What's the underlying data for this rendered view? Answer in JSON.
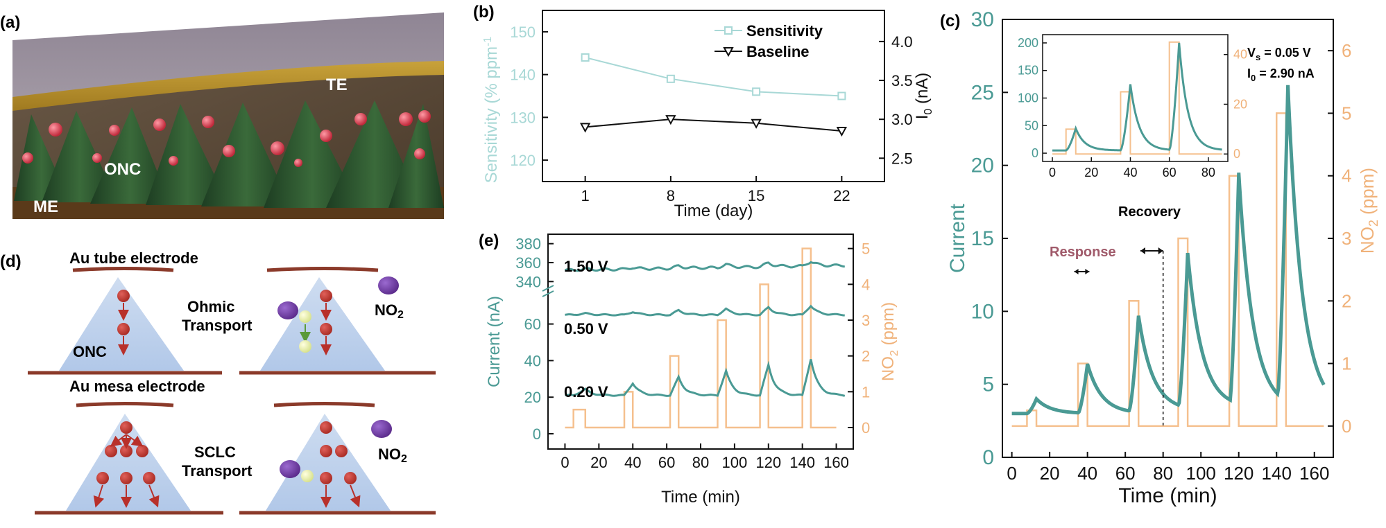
{
  "colors": {
    "teal": "#4a9a94",
    "orange": "#f5c08e",
    "lightteal": "#a8d8d6",
    "brown": "#8b3a2a",
    "red": "#c0392b",
    "purple": "#7b3fa0"
  },
  "panel_a": {
    "label": "(a)",
    "te": "TE",
    "onc": "ONC",
    "me": "ME"
  },
  "panel_d": {
    "label": "(d)",
    "au_tube": "Au tube electrode",
    "ohmic_line1": "Ohmic",
    "ohmic_line2": "Transport",
    "onc": "ONC",
    "au_mesa": "Au mesa electrode",
    "sclc_line1": "SCLC",
    "sclc_line2": "Transport",
    "no2_label": "NO",
    "no2_sub": "2"
  },
  "chart_data": [
    {
      "id": "b",
      "label": "(b)",
      "type": "line",
      "xlabel": "Time (day)",
      "ylabel_left": "Sensitivity (% ppm",
      "ylabel_left_sup": "-1",
      "ylabel_right": "I",
      "ylabel_right_sub": "0",
      "ylabel_right_unit": " (nA)",
      "x": [
        1,
        8,
        15,
        22
      ],
      "xticks": [
        "1",
        "8",
        "15",
        "22"
      ],
      "ylim_left": [
        115,
        155
      ],
      "yticks_left": [
        "120",
        "130",
        "140",
        "150"
      ],
      "ylim_right": [
        2.2,
        4.4
      ],
      "yticks_right": [
        "2.5",
        "3.0",
        "3.5",
        "4.0"
      ],
      "series": [
        {
          "name": "Sensitivity",
          "axis": "left",
          "values": [
            144,
            139,
            136,
            135
          ]
        },
        {
          "name": "Baseline",
          "axis": "right",
          "values": [
            2.9,
            3.0,
            2.95,
            2.85
          ]
        }
      ]
    },
    {
      "id": "e",
      "label": "(e)",
      "type": "line",
      "xlabel": "Time (min)",
      "ylabel_left": "Current (nA)",
      "ylabel_right": "NO",
      "ylabel_right_sub": "2",
      "ylabel_right_unit": " (ppm)",
      "xlim": [
        -10,
        170
      ],
      "xticks": [
        "0",
        "20",
        "40",
        "60",
        "80",
        "100",
        "120",
        "140",
        "160"
      ],
      "yticks_left_top": [
        "340",
        "360",
        "380"
      ],
      "yticks_left_bottom": [
        "0",
        "20",
        "40",
        "60"
      ],
      "yticks_right": [
        "0",
        "1",
        "2",
        "3",
        "4",
        "5"
      ],
      "ylim_right": [
        -0.6,
        5.4
      ],
      "series": [
        {
          "name": "1.50 V",
          "baseline": 352,
          "spike": 5
        },
        {
          "name": "0.50 V",
          "baseline": 65,
          "spike": 5
        },
        {
          "name": "0.20 V",
          "baseline": 21,
          "spike": 20
        }
      ],
      "no2_pulses": [
        {
          "start": 5,
          "end": 12,
          "ppm": 0.5
        },
        {
          "start": 35,
          "end": 40,
          "ppm": 1.0
        },
        {
          "start": 62,
          "end": 67,
          "ppm": 2.0
        },
        {
          "start": 90,
          "end": 95,
          "ppm": 3.0
        },
        {
          "start": 115,
          "end": 120,
          "ppm": 4.0
        },
        {
          "start": 140,
          "end": 145,
          "ppm": 5.0
        }
      ]
    },
    {
      "id": "c",
      "label": "(c)",
      "type": "line",
      "xlabel": "Time (min)",
      "ylabel_left": "Current",
      "ylabel_right": "NO",
      "ylabel_right_sub": "2",
      "ylabel_right_unit": " (ppm)",
      "xlim": [
        -5,
        170
      ],
      "xticks": [
        "0",
        "20",
        "40",
        "60",
        "80",
        "100",
        "120",
        "140",
        "160"
      ],
      "ylim_left": [
        0,
        30
      ],
      "yticks_left": [
        "0",
        "5",
        "10",
        "15",
        "20",
        "25",
        "30"
      ],
      "ylim_right": [
        -0.5,
        6.5
      ],
      "yticks_right": [
        "0",
        "1",
        "2",
        "3",
        "4",
        "5",
        "6"
      ],
      "annotations": {
        "response": "Response",
        "recovery": "Recovery",
        "vs": "V",
        "vs_sub": "s",
        "vs_val": " = 0.05 V",
        "i0": "I",
        "i0_sub": "0",
        "i0_val": " = 2.90 nA"
      },
      "no2_pulses": [
        {
          "start": 8,
          "end": 13,
          "ppm": 0.25
        },
        {
          "start": 35,
          "end": 40,
          "ppm": 1.0
        },
        {
          "start": 62,
          "end": 67,
          "ppm": 2.0
        },
        {
          "start": 88,
          "end": 93,
          "ppm": 3.0
        },
        {
          "start": 115,
          "end": 120,
          "ppm": 4.0
        },
        {
          "start": 140,
          "end": 145,
          "ppm": 5.0
        }
      ],
      "current_peaks": [
        {
          "t": 13,
          "base": 3.0,
          "peak": 4.0
        },
        {
          "t": 40,
          "base": 3.0,
          "peak": 6.4
        },
        {
          "t": 67,
          "base": 3.2,
          "peak": 9.7
        },
        {
          "t": 93,
          "base": 3.4,
          "peak": 14.0
        },
        {
          "t": 120,
          "base": 3.3,
          "peak": 19.5
        },
        {
          "t": 146,
          "base": 3.2,
          "peak": 25.5
        }
      ],
      "inset": {
        "xlim": [
          -5,
          90
        ],
        "xticks": [
          "0",
          "20",
          "40",
          "60",
          "80"
        ],
        "ylim_left": [
          -15,
          215
        ],
        "yticks_left": [
          "0",
          "50",
          "100",
          "150",
          "200"
        ],
        "ylim_right": [
          -3,
          48
        ],
        "yticks_right": [
          "0",
          "20",
          "40"
        ],
        "no2_pulses": [
          {
            "start": 7,
            "end": 12,
            "ppm": 10
          },
          {
            "start": 35,
            "end": 40,
            "ppm": 25
          },
          {
            "start": 60,
            "end": 65,
            "ppm": 45
          }
        ],
        "current_peaks": [
          {
            "t": 12,
            "base": 5,
            "peak": 45
          },
          {
            "t": 40,
            "base": 5,
            "peak": 125
          },
          {
            "t": 65,
            "base": 5,
            "peak": 200
          }
        ]
      }
    }
  ]
}
